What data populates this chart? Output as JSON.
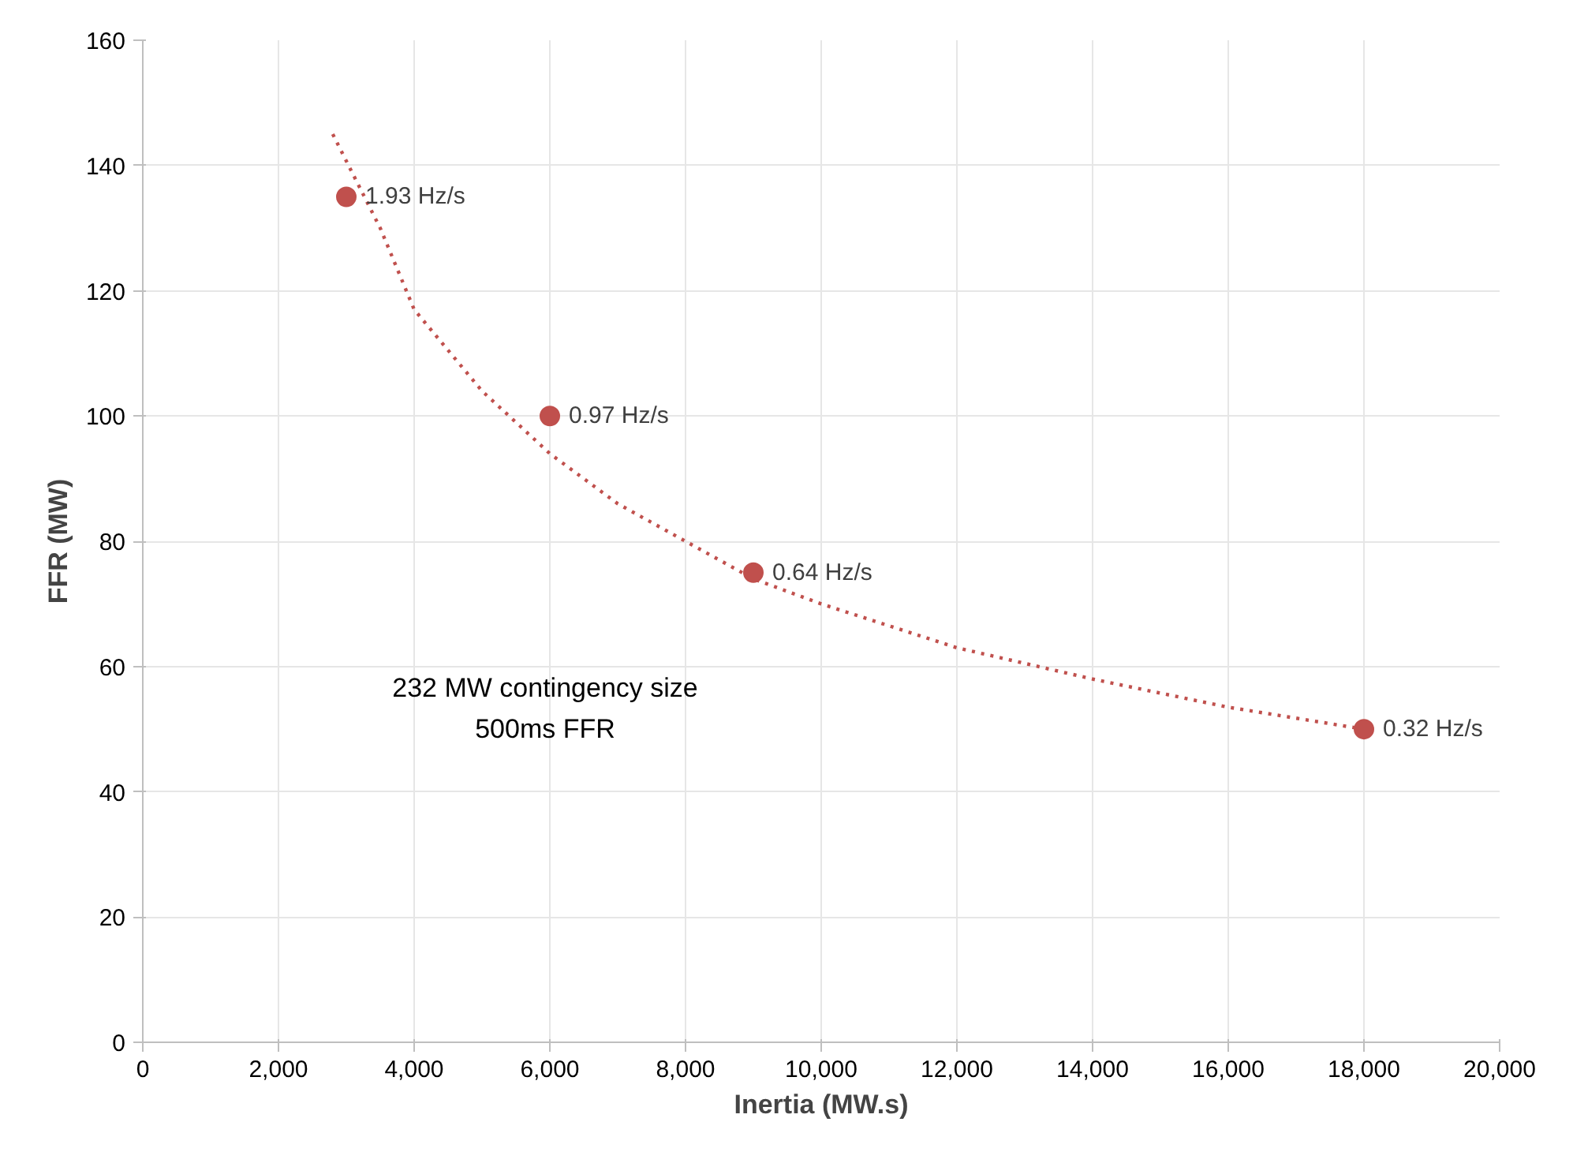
{
  "chart_data": {
    "type": "scatter",
    "xlabel": "Inertia (MW.s)",
    "ylabel": "FFR (MW)",
    "xlim": [
      0,
      20000
    ],
    "xticks": [
      {
        "value": 0,
        "label": "0"
      },
      {
        "value": 2000,
        "label": "2,000"
      },
      {
        "value": 4000,
        "label": "4,000"
      },
      {
        "value": 6000,
        "label": "6,000"
      },
      {
        "value": 8000,
        "label": "8,000"
      },
      {
        "value": 10000,
        "label": "10,000"
      },
      {
        "value": 12000,
        "label": "12,000"
      },
      {
        "value": 14000,
        "label": "14,000"
      },
      {
        "value": 16000,
        "label": "16,000"
      },
      {
        "value": 18000,
        "label": "18,000"
      },
      {
        "value": 20000,
        "label": "20,000"
      }
    ],
    "ylim": [
      0,
      160
    ],
    "yticks": [
      0,
      20,
      40,
      60,
      80,
      100,
      120,
      140,
      160
    ],
    "grid": true,
    "series": [
      {
        "color": "#c0504d",
        "marker": "circle",
        "x": [
          3000,
          6000,
          9000,
          18000
        ],
        "values": [
          135,
          100,
          75,
          50
        ]
      },
      {
        "type": "line",
        "color": "#c0504d",
        "line_style": "dotted",
        "x": [
          2800,
          3500,
          4000,
          5000,
          6000,
          7000,
          8000,
          9000,
          10000,
          12000,
          14000,
          16000,
          18000
        ],
        "values": [
          145,
          130,
          117,
          104,
          94,
          86,
          80,
          74,
          70,
          63,
          58,
          53.5,
          50
        ]
      }
    ],
    "annotations": [
      {
        "text": "1.93 Hz/s",
        "x": 3000,
        "y": 135
      },
      {
        "text": "0.97 Hz/s",
        "x": 6000,
        "y": 100
      },
      {
        "text": "0.64 Hz/s",
        "x": 9000,
        "y": 75
      },
      {
        "text": "0.32 Hz/s",
        "x": 18000,
        "y": 50
      },
      "232 MW contingency size",
      "500ms FFR"
    ]
  }
}
